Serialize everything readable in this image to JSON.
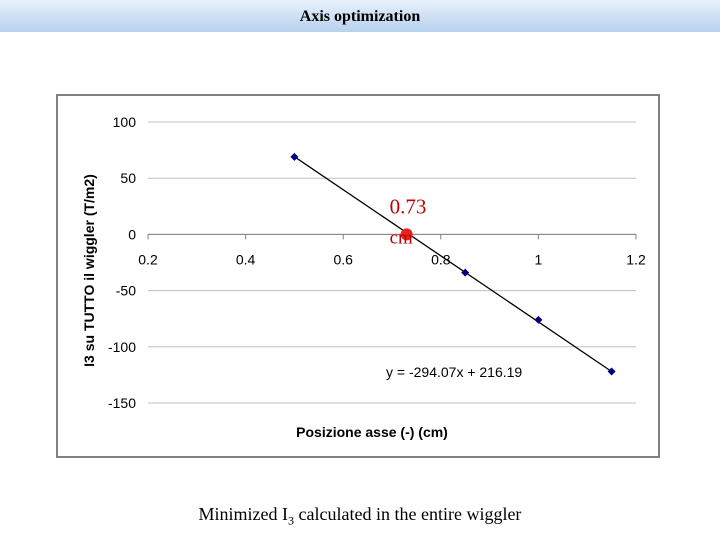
{
  "slide": {
    "title": "Axis optimization",
    "caption_prefix": "Minimized I",
    "caption_sub": "3",
    "caption_suffix": " calculated in the entire wiggler"
  },
  "colors": {
    "line": "#000000",
    "marker": "#000080",
    "highlight": "#e8221c",
    "annotation": "#c00000",
    "grid": "#c0c0c0"
  },
  "chart_data": {
    "type": "scatter",
    "xlabel": "Posizione asse (-) (cm)",
    "ylabel": "I3 su TUTTO il wiggler (T/m2)",
    "xlim": [
      0.2,
      1.2
    ],
    "ylim": [
      -150,
      100
    ],
    "xticks": [
      "0.2",
      "0.4",
      "0.6",
      "0.8",
      "1",
      "1.2"
    ],
    "yticks": [
      "100",
      "50",
      "0",
      "-50",
      "-100",
      "-150"
    ],
    "grid": "horizontal",
    "series": [
      {
        "values": [
          {
            "x": 0.5,
            "y": 69
          },
          {
            "x": 0.85,
            "y": -34
          },
          {
            "x": 1.0,
            "y": -76
          },
          {
            "x": 1.15,
            "y": -122
          }
        ]
      }
    ],
    "trendline": {
      "slope": -294.07,
      "intercept": 216.19,
      "x_range": [
        0.5,
        1.15
      ],
      "equation": "y = -294.07x + 216.19"
    },
    "highlight": {
      "x": 0.73,
      "y": 0,
      "label_line1": "0.73",
      "label_line2": "cm"
    }
  }
}
